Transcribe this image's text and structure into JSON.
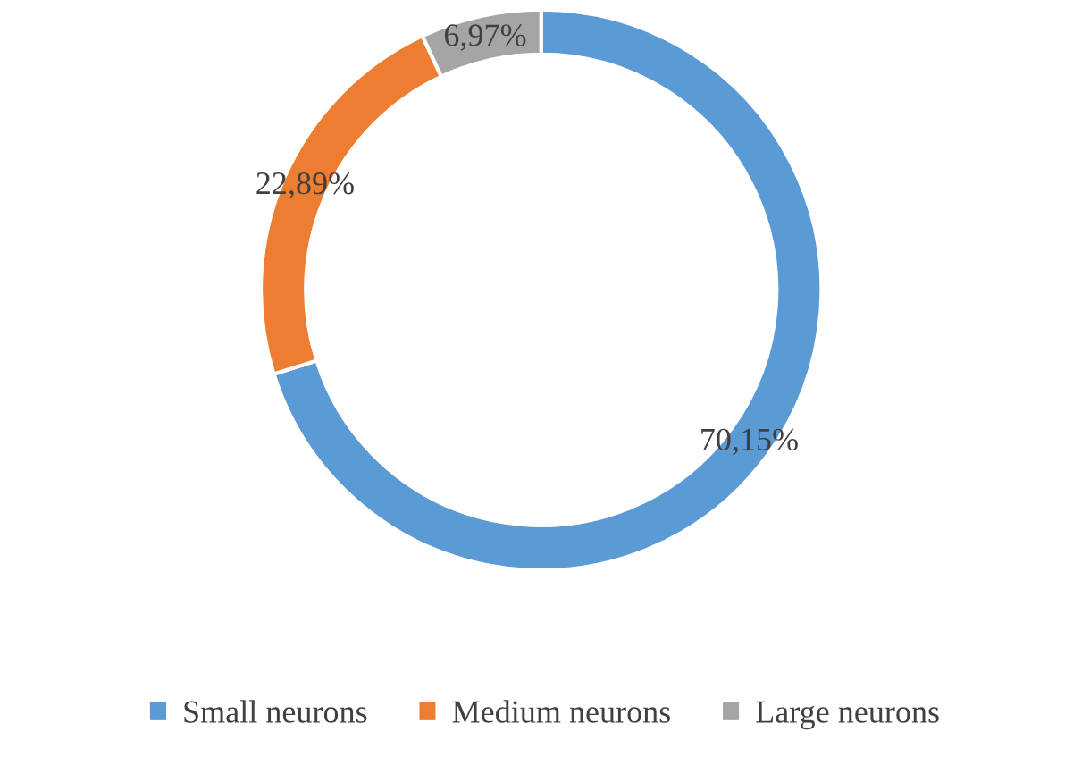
{
  "chart_data": {
    "type": "donut",
    "categories": [
      "Small neurons",
      "Medium neurons",
      "Large neurons"
    ],
    "values": [
      70.15,
      22.89,
      6.97
    ],
    "colors": [
      "#5b9bd5",
      "#ed7d31",
      "#a5a5a5"
    ],
    "value_labels": [
      "70,15%",
      "22,89%",
      "6,97%"
    ],
    "legend": "bottom"
  }
}
